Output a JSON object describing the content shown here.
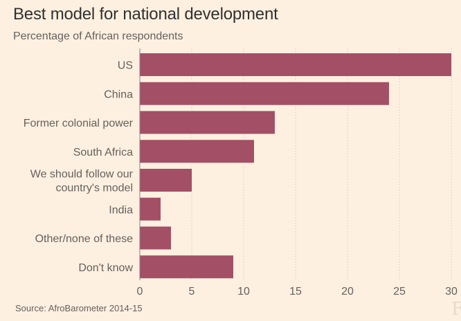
{
  "chart_data": {
    "type": "bar",
    "orientation": "horizontal",
    "title": "Best model for national development",
    "subtitle": "Percentage of African respondents",
    "source": "Source: AfroBarometer 2014-15",
    "categories": [
      [
        "US"
      ],
      [
        "China"
      ],
      [
        "Former colonial power"
      ],
      [
        "South Africa"
      ],
      [
        "We should follow our",
        "country's model"
      ],
      [
        "India"
      ],
      [
        "Other/none of these"
      ],
      [
        "Don't know"
      ]
    ],
    "category_labels": [
      "US",
      "China",
      "Former colonial power",
      "South Africa",
      "We should follow our country's model",
      "India",
      "Other/none of these",
      "Don't know"
    ],
    "values": [
      30,
      24,
      13,
      11,
      5,
      2,
      3,
      9
    ],
    "xlim": [
      0,
      30
    ],
    "xticks": [
      0,
      5,
      10,
      15,
      20,
      25,
      30
    ],
    "xlabel": "",
    "ylabel": "",
    "grid": "vertical dotted",
    "bar_color": "#a34f66"
  },
  "branding": {
    "logo_text": "F"
  }
}
